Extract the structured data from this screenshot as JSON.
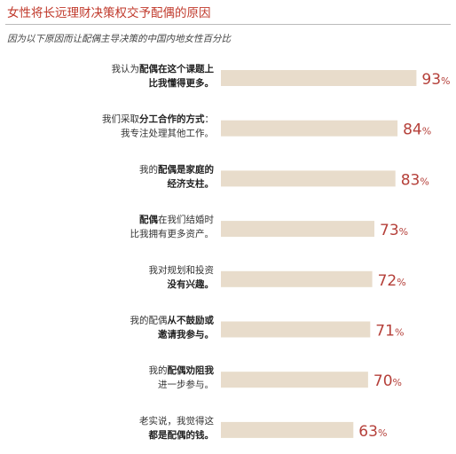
{
  "chart_data": {
    "type": "bar",
    "orientation": "horizontal",
    "title": "女性将长远理财决策权交予配偶的原因",
    "subtitle": "因为以下原因而让配偶主导决策的中国内地女性百分比",
    "value_suffix": "%",
    "xlim": [
      0,
      100
    ],
    "grid": false,
    "bar_color": "#e8dccb",
    "value_color": "#b5403a",
    "title_color": "#c0392b",
    "categories": [
      "我认为配偶在这个课题上比我懂得更多。",
      "我们采取分工合作的方式：我专注处理其他工作。",
      "我的配偶是家庭的经济支柱。",
      "配偶在我们结婚时比我拥有更多资产。",
      "我对规划和投资没有兴趣。",
      "我的配偶从不鼓励或邀请我参与。",
      "我的配偶劝阻我进一步参与。",
      "老实说，我觉得这都是配偶的钱。"
    ],
    "category_lines": [
      [
        [
          {
            "t": "我认为",
            "b": false
          },
          {
            "t": "配偶在这个课题上",
            "b": true
          }
        ],
        [
          {
            "t": "比我懂得更多。",
            "b": true
          }
        ]
      ],
      [
        [
          {
            "t": "我们采取",
            "b": false
          },
          {
            "t": "分工合作的方式",
            "b": true
          },
          {
            "t": "：",
            "b": false
          }
        ],
        [
          {
            "t": "我专注处理其他工作。",
            "b": false
          }
        ]
      ],
      [
        [
          {
            "t": "我的",
            "b": false
          },
          {
            "t": "配偶是家庭的",
            "b": true
          }
        ],
        [
          {
            "t": "经济支柱。",
            "b": true
          }
        ]
      ],
      [
        [
          {
            "t": "配偶",
            "b": true
          },
          {
            "t": "在我们结婚时",
            "b": false
          }
        ],
        [
          {
            "t": "比我拥有更多资产。",
            "b": false
          }
        ]
      ],
      [
        [
          {
            "t": "我对规划和投资",
            "b": false
          }
        ],
        [
          {
            "t": "没有兴趣。",
            "b": true
          }
        ]
      ],
      [
        [
          {
            "t": "我的配偶",
            "b": false
          },
          {
            "t": "从不鼓励或",
            "b": true
          }
        ],
        [
          {
            "t": "邀请我参与。",
            "b": true
          }
        ]
      ],
      [
        [
          {
            "t": "我的",
            "b": false
          },
          {
            "t": "配偶劝阻我",
            "b": true
          }
        ],
        [
          {
            "t": "进一步参与。",
            "b": false
          }
        ]
      ],
      [
        [
          {
            "t": "老实说，我觉得这",
            "b": false
          }
        ],
        [
          {
            "t": "都是配偶的钱。",
            "b": true
          }
        ]
      ]
    ],
    "values": [
      93,
      84,
      83,
      73,
      72,
      71,
      70,
      63
    ]
  }
}
